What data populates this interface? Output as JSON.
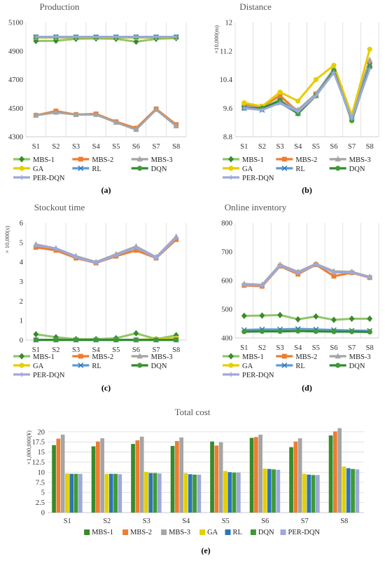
{
  "chart_data": [
    {
      "id": "a",
      "type": "line",
      "title": "Production",
      "panel_label": "(a)",
      "unit_label": "",
      "categories": [
        "S1",
        "S2",
        "S3",
        "S4",
        "S5",
        "S6",
        "S7",
        "S8"
      ],
      "ylim": [
        4300,
        5100
      ],
      "yticks": [
        "4300",
        "4500",
        "4700",
        "4900",
        "5100"
      ],
      "grid": "vertical",
      "legend_position": "bottom",
      "series": [
        {
          "name": "MBS-1",
          "values": [
            4970,
            4972,
            4985,
            4988,
            4985,
            4965,
            4985,
            4990
          ]
        },
        {
          "name": "MBS-2",
          "values": [
            4450,
            4480,
            4455,
            4460,
            4405,
            4360,
            4495,
            4385
          ]
        },
        {
          "name": "MBS-3",
          "values": [
            4450,
            4470,
            4455,
            4455,
            4400,
            4350,
            4490,
            4375
          ]
        },
        {
          "name": "GA",
          "values": [
            4995,
            4995,
            4995,
            4995,
            4995,
            4995,
            4995,
            4995
          ]
        },
        {
          "name": "RL",
          "values": [
            4998,
            4998,
            4998,
            4998,
            4998,
            4998,
            4998,
            4998
          ]
        },
        {
          "name": "DQN",
          "values": [
            4998,
            4998,
            4998,
            4998,
            4998,
            4998,
            4998,
            4998
          ]
        },
        {
          "name": "PER-DQN",
          "values": [
            4999,
            4999,
            4999,
            4999,
            4999,
            4999,
            4999,
            4999
          ]
        }
      ]
    },
    {
      "id": "b",
      "type": "line",
      "title": "Distance",
      "panel_label": "(b)",
      "unit_label": "×10,000(m)",
      "categories": [
        "S1",
        "S2",
        "S3",
        "S4",
        "S5",
        "S6",
        "S7",
        "S8"
      ],
      "ylim": [
        8.8,
        12
      ],
      "yticks": [
        "8.8",
        "9.6",
        "10.4",
        "11.2",
        "12"
      ],
      "grid": "vertical",
      "legend_position": "bottom",
      "series": [
        {
          "name": "MBS-1",
          "values": [
            9.65,
            9.6,
            9.85,
            9.45,
            9.95,
            10.6,
            9.3,
            10.75
          ]
        },
        {
          "name": "MBS-2",
          "values": [
            9.7,
            9.65,
            9.95,
            9.5,
            10.0,
            10.65,
            9.35,
            10.85
          ]
        },
        {
          "name": "MBS-3",
          "values": [
            9.65,
            9.6,
            9.8,
            9.55,
            10.0,
            10.7,
            9.35,
            10.95
          ]
        },
        {
          "name": "GA",
          "values": [
            9.75,
            9.65,
            10.05,
            9.8,
            10.4,
            10.8,
            9.4,
            11.25
          ]
        },
        {
          "name": "RL",
          "values": [
            9.6,
            9.55,
            9.75,
            9.45,
            9.95,
            10.6,
            9.3,
            10.8
          ]
        },
        {
          "name": "DQN",
          "values": [
            9.6,
            9.6,
            9.8,
            9.45,
            9.95,
            10.65,
            9.25,
            10.75
          ]
        },
        {
          "name": "PER-DQN",
          "values": [
            9.6,
            9.55,
            9.75,
            9.5,
            9.95,
            10.6,
            9.3,
            10.7
          ]
        }
      ]
    },
    {
      "id": "c",
      "type": "line",
      "title": "Stockout time",
      "panel_label": "(c)",
      "unit_label": "× 10,000(s)",
      "categories": [
        "S1",
        "S2",
        "S3",
        "S4",
        "S5",
        "S6",
        "S7",
        "S8"
      ],
      "ylim": [
        0,
        6
      ],
      "yticks": [
        "0",
        "1",
        "2",
        "3",
        "4",
        "5",
        "6"
      ],
      "grid": "vertical",
      "legend_position": "bottom",
      "series": [
        {
          "name": "MBS-1",
          "values": [
            0.3,
            0.15,
            0.05,
            0.05,
            0.1,
            0.35,
            0.05,
            0.25
          ]
        },
        {
          "name": "MBS-2",
          "values": [
            4.75,
            4.6,
            4.2,
            3.95,
            4.3,
            4.6,
            4.2,
            5.15
          ]
        },
        {
          "name": "MBS-3",
          "values": [
            4.9,
            4.7,
            4.3,
            4.0,
            4.4,
            4.8,
            4.25,
            5.3
          ]
        },
        {
          "name": "GA",
          "values": [
            0.02,
            0.02,
            0.02,
            0.02,
            0.02,
            0.02,
            0.05,
            0.1
          ]
        },
        {
          "name": "RL",
          "values": [
            0.01,
            0.01,
            0.01,
            0.01,
            0.01,
            0.01,
            0.01,
            0.01
          ]
        },
        {
          "name": "DQN",
          "values": [
            0.01,
            0.01,
            0.01,
            0.01,
            0.01,
            0.01,
            0.01,
            0.01
          ]
        },
        {
          "name": "PER-DQN",
          "values": [
            4.85,
            4.7,
            4.25,
            3.95,
            4.35,
            4.75,
            4.2,
            5.25
          ]
        }
      ]
    },
    {
      "id": "d",
      "type": "line",
      "title": "Online inventory",
      "panel_label": "(d)",
      "unit_label": "",
      "categories": [
        "S1",
        "S2",
        "S3",
        "S4",
        "S5",
        "S6",
        "S7",
        "S8"
      ],
      "ylim": [
        400,
        800
      ],
      "yticks": [
        "400",
        "500",
        "600",
        "700",
        "800"
      ],
      "grid": "vertical",
      "legend_position": "bottom",
      "series": [
        {
          "name": "MBS-1",
          "values": [
            477,
            478,
            480,
            465,
            475,
            463,
            467,
            467
          ]
        },
        {
          "name": "MBS-2",
          "values": [
            583,
            580,
            650,
            622,
            655,
            615,
            627,
            610
          ]
        },
        {
          "name": "MBS-3",
          "values": [
            588,
            585,
            655,
            630,
            658,
            632,
            630,
            613
          ]
        },
        {
          "name": "GA",
          "values": [
            422,
            424,
            425,
            426,
            425,
            424,
            423,
            423
          ]
        },
        {
          "name": "RL",
          "values": [
            428,
            430,
            430,
            432,
            430,
            428,
            426,
            425
          ]
        },
        {
          "name": "DQN",
          "values": [
            422,
            423,
            423,
            424,
            423,
            422,
            422,
            421
          ]
        },
        {
          "name": "PER-DQN",
          "values": [
            585,
            583,
            652,
            626,
            656,
            628,
            628,
            612
          ]
        }
      ]
    },
    {
      "id": "e",
      "type": "bar",
      "title": "Total cost",
      "panel_label": "(e)",
      "unit_label": "×1,000,000(¥)",
      "categories": [
        "S1",
        "S2",
        "S3",
        "S4",
        "S5",
        "S6",
        "S7",
        "S8"
      ],
      "ylim": [
        0,
        21
      ],
      "yticks": [
        "0",
        "2.5",
        "5",
        "7.5",
        "10",
        "12.5",
        "15",
        "17.5",
        "20"
      ],
      "grid": "horizontal",
      "legend_position": "bottom",
      "series": [
        {
          "name": "MBS-1",
          "values": [
            16.7,
            16.4,
            17.0,
            16.5,
            17.6,
            18.5,
            16.2,
            19.1
          ]
        },
        {
          "name": "MBS-2",
          "values": [
            18.3,
            17.6,
            17.9,
            17.7,
            16.6,
            18.7,
            17.6,
            20.1
          ]
        },
        {
          "name": "MBS-3",
          "values": [
            19.3,
            18.4,
            18.8,
            18.6,
            17.4,
            19.3,
            18.4,
            20.9
          ]
        },
        {
          "name": "GA",
          "values": [
            9.7,
            9.6,
            10.1,
            9.8,
            10.3,
            10.9,
            9.6,
            11.4
          ]
        },
        {
          "name": "RL",
          "values": [
            9.6,
            9.6,
            9.8,
            9.5,
            10.0,
            10.8,
            9.4,
            11.0
          ]
        },
        {
          "name": "DQN",
          "values": [
            9.6,
            9.6,
            9.8,
            9.4,
            9.9,
            10.7,
            9.3,
            10.8
          ]
        },
        {
          "name": "PER-DQN",
          "values": [
            9.6,
            9.5,
            9.7,
            9.4,
            9.9,
            10.6,
            9.3,
            10.7
          ]
        }
      ]
    }
  ],
  "colors": {
    "MBS-1": "#3a8a2b",
    "MBS-2": "#ed7d31",
    "MBS-3": "#a5a5a5",
    "GA": "#e3d000",
    "RL": "#2e75b6",
    "DQN": "#3d9b33",
    "PER-DQN": "#9ea9d9"
  },
  "line_colors": {
    "MBS-1": "#8fc66a",
    "MBS-2": "#ed7d31",
    "MBS-3": "#a5a5a5",
    "GA": "#e8cc00",
    "RL": "#5b9bd5",
    "DQN": "#2d8a2d",
    "PER-DQN": "#9ea9d9"
  },
  "markers": {
    "MBS-1": "diamond",
    "MBS-2": "square",
    "MBS-3": "triangle",
    "GA": "circle",
    "RL": "x",
    "DQN": "circle",
    "PER-DQN": "plus"
  }
}
